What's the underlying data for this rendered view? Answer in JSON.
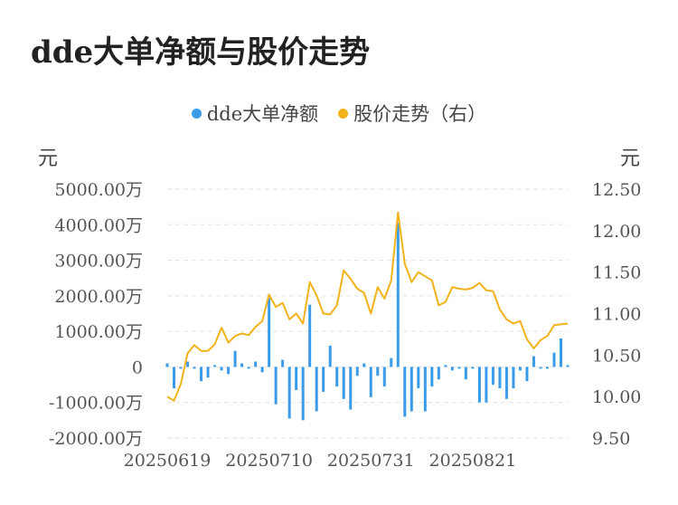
{
  "title": "dde大单净额与股价走势",
  "colors": {
    "bar": "#3a9bea",
    "line": "#f2b31a",
    "grid": "#e2e2e2"
  },
  "chart_data": {
    "type": "bar+line",
    "legend": [
      {
        "label": "dde大单净额",
        "color": "#3a9bea"
      },
      {
        "label": "股价走势（右）",
        "color": "#f2b31a"
      }
    ],
    "left_unit": "元",
    "right_unit": "元",
    "left_ticks": [
      "5000.00万",
      "4000.00万",
      "3000.00万",
      "2000.00万",
      "1000.00万",
      "0",
      "-1000.00万",
      "-2000.00万"
    ],
    "right_ticks": [
      "12.50",
      "12.00",
      "11.50",
      "11.00",
      "10.50",
      "10.00",
      "9.50"
    ],
    "left_range": [
      -2000,
      5000
    ],
    "right_range": [
      9.5,
      12.5
    ],
    "x_tick_labels": [
      "20250619",
      "20250710",
      "20250731",
      "20250821"
    ],
    "x_tick_index": [
      0,
      15,
      30,
      45
    ],
    "series": [
      {
        "name": "dde大单净额",
        "kind": "bar",
        "axis": "left",
        "values": [
          100,
          -600,
          -50,
          150,
          -50,
          -400,
          -300,
          50,
          -100,
          -200,
          450,
          100,
          -50,
          150,
          -150,
          1950,
          -1050,
          200,
          -1450,
          -650,
          -1500,
          1750,
          -1250,
          -700,
          600,
          -550,
          -900,
          -1200,
          -250,
          100,
          -850,
          -250,
          -550,
          250,
          4050,
          -1400,
          -1250,
          -600,
          -1250,
          -550,
          -350,
          50,
          -100,
          -50,
          -350,
          -50,
          -1000,
          -1000,
          -500,
          -600,
          -900,
          -600,
          -100,
          -400,
          300,
          -50,
          -50,
          400,
          800,
          50
        ]
      },
      {
        "name": "股价走势（右）",
        "kind": "line",
        "axis": "right",
        "values": [
          10.0,
          9.95,
          10.15,
          10.52,
          10.62,
          10.55,
          10.55,
          10.63,
          10.83,
          10.65,
          10.73,
          10.76,
          10.74,
          10.84,
          10.91,
          11.23,
          11.08,
          11.13,
          10.93,
          11.0,
          10.88,
          11.38,
          11.22,
          11.0,
          10.99,
          11.1,
          11.52,
          11.42,
          11.3,
          11.25,
          11.0,
          11.32,
          11.18,
          11.4,
          12.22,
          11.6,
          11.38,
          11.5,
          11.45,
          11.4,
          11.1,
          11.14,
          11.32,
          11.3,
          11.29,
          11.31,
          11.37,
          11.28,
          11.27,
          11.05,
          10.93,
          10.88,
          10.91,
          10.69,
          10.58,
          10.68,
          10.73,
          10.86,
          10.87,
          10.88
        ]
      }
    ]
  }
}
